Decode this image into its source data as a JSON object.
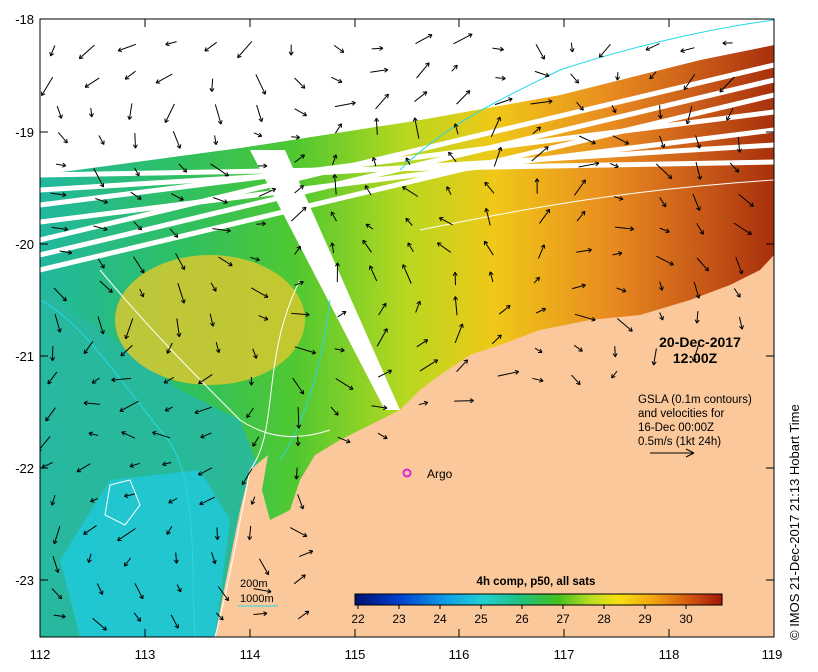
{
  "map": {
    "axes": {
      "x_ticks": [
        "112",
        "113",
        "114",
        "115",
        "116",
        "117",
        "118",
        "119"
      ],
      "y_ticks": [
        "-18",
        "-19",
        "-20",
        "-21",
        "-22",
        "-23"
      ],
      "lon_range": [
        112,
        119
      ],
      "lat_range": [
        -23.5,
        -18
      ]
    },
    "date_label": "20-Dec-2017",
    "time_label": "12:00Z",
    "gsla_note": [
      "GSLA (0.1m contours)",
      "and velocities for",
      "16-Dec 00:00Z",
      "0.5m/s (1kt 24h)"
    ],
    "argo": {
      "label": "Argo",
      "lon": 115.45,
      "lat": -22.05,
      "color": "#e020e0"
    },
    "contour_legend": {
      "line1": "200m",
      "line2": "1000m",
      "color": "#22d8e8"
    },
    "colorbar": {
      "title": "4h comp, p50, all sats",
      "labels": [
        "22",
        "23",
        "24",
        "25",
        "26",
        "27",
        "28",
        "29",
        "30"
      ]
    },
    "credit": "© IMOS 21-Dec-2017 21:13 Hobart Time",
    "colors": {
      "land": "#fac89a",
      "ocean_low": "#1ec8d0",
      "ocean_mid": "#2ec22e",
      "ocean_high": "#b43c0a"
    }
  }
}
